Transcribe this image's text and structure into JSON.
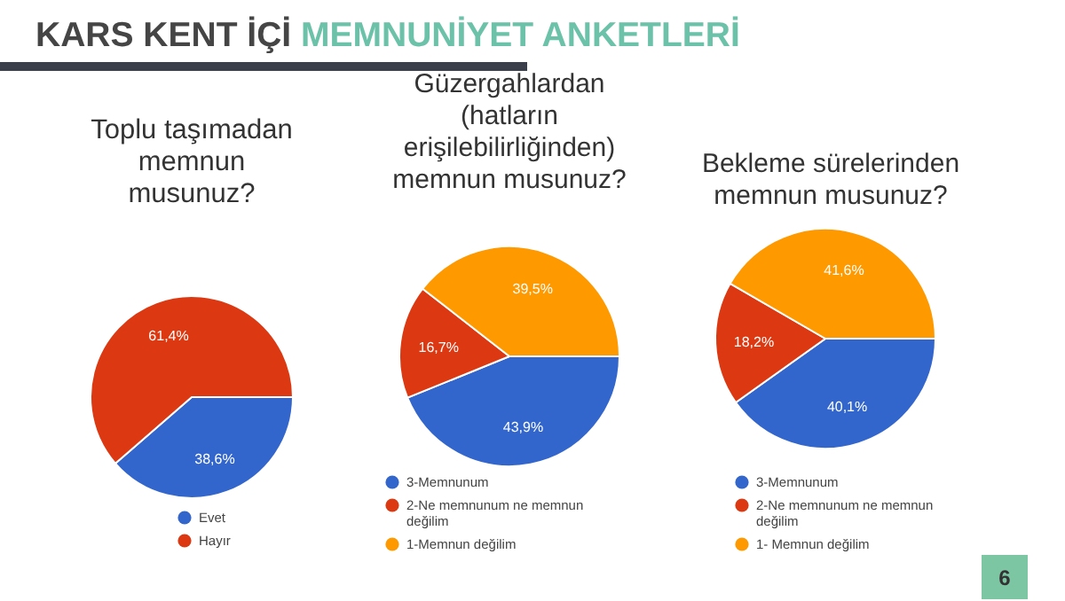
{
  "chart_data": [
    {
      "type": "pie",
      "title": "Toplu taşımadan\nmemnun\nmusunuz?",
      "categories": [
        "Evet",
        "Hayır"
      ],
      "values": [
        38.6,
        61.4
      ],
      "colors": [
        "#3366cc",
        "#dc3912"
      ],
      "value_labels": [
        "38,6%",
        "61,4%"
      ],
      "legend": "bottom",
      "annotations": [
        "KARS KENT İÇİ",
        "MEMNUNİYET ANKETLERİ"
      ]
    },
    {
      "type": "pie",
      "title": "Güzergahlardan\n(hatların\nerişilebilirliğinden)\nmemnun musunuz?",
      "categories": [
        "3-Memnunum",
        "2-Ne memnunum ne memnun\ndeğilim",
        "1-Memnun değilim"
      ],
      "values": [
        43.9,
        16.7,
        39.5
      ],
      "colors": [
        "#3366cc",
        "#dc3912",
        "#ff9900"
      ],
      "value_labels": [
        "43,9%",
        "16,7%",
        "39,5%"
      ],
      "legend": "bottom"
    },
    {
      "type": "pie",
      "title": "Bekleme sürelerinden\nmemnun musunuz?",
      "categories": [
        "3-Memnunum",
        "2-Ne memnunum ne memnun\ndeğilim",
        "1- Memnun değilim"
      ],
      "values": [
        40.1,
        18.2,
        41.6
      ],
      "colors": [
        "#3366cc",
        "#dc3912",
        "#ff9900"
      ],
      "value_labels": [
        "40,1%",
        "18,2%",
        "41,6%"
      ],
      "legend": "bottom",
      "annotations": [
        "6"
      ]
    }
  ]
}
